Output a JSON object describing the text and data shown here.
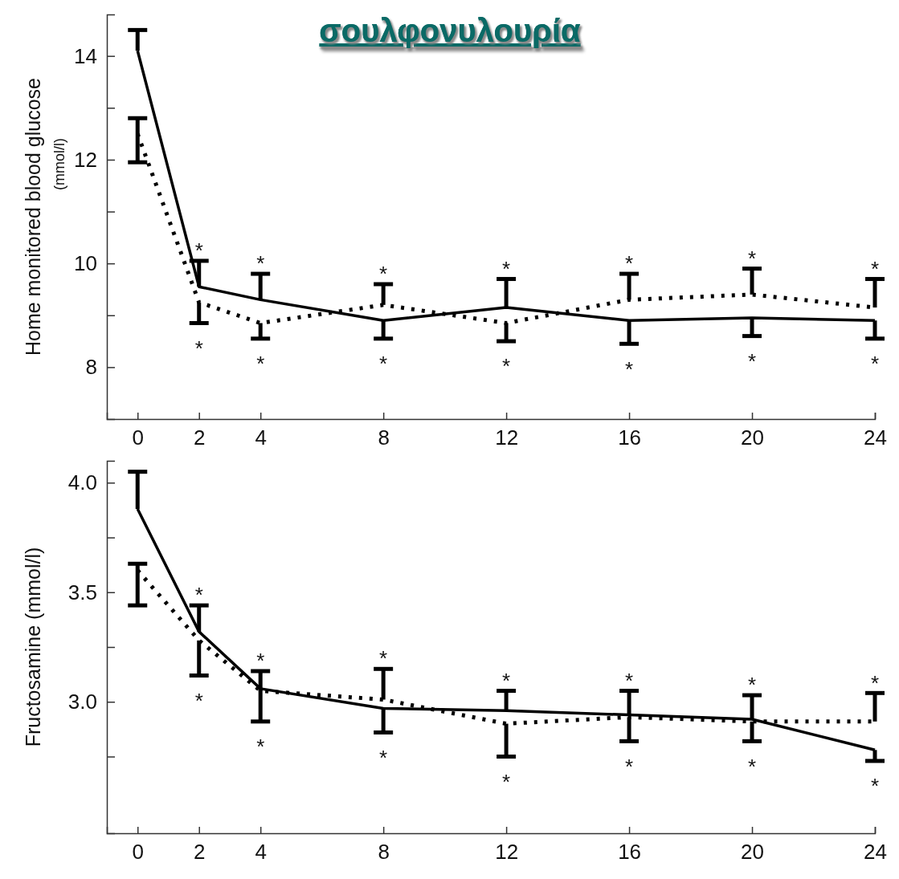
{
  "chart_data": [
    {
      "type": "line",
      "title": "σουλφονυλουρία",
      "ylabel": "Home monitored blood glucose $_{(mmol/l)}$",
      "x": [
        0,
        2,
        4,
        8,
        12,
        16,
        20,
        24
      ],
      "xlim": [
        -1,
        24
      ],
      "xticks": [
        0,
        2,
        4,
        8,
        12,
        16,
        20,
        24
      ],
      "ylim": [
        7,
        14.8
      ],
      "yticks": [
        8,
        {
          "value": 9,
          "label": null
        },
        10,
        {
          "value": 11,
          "label": null
        },
        12,
        {
          "value": 13,
          "label": null
        },
        14
      ],
      "marker": "none",
      "series": [
        {
          "color": "#000000",
          "line_style": "solid",
          "values": [
            14.1,
            9.55,
            9.3,
            8.9,
            9.15,
            8.9,
            8.95,
            8.9
          ],
          "errors": [
            [
              14.1,
              14.5
            ],
            [
              9.55,
              10.05
            ],
            [
              9.3,
              9.8
            ],
            [
              8.55,
              8.9
            ],
            [
              9.15,
              9.7
            ],
            [
              8.45,
              8.9
            ],
            [
              8.6,
              8.95
            ],
            [
              8.55,
              8.9
            ]
          ],
          "value_labels": [
            null,
            "*",
            "*",
            "*",
            "*",
            "*",
            "*",
            "*"
          ]
        },
        {
          "color": "#000000",
          "line_style": "dotted",
          "values": [
            12.5,
            9.25,
            8.85,
            9.2,
            8.85,
            9.3,
            9.4,
            9.15
          ],
          "errors": [
            [
              11.95,
              12.8
            ],
            [
              8.85,
              9.25
            ],
            [
              8.55,
              8.85
            ],
            [
              9.2,
              9.6
            ],
            [
              8.5,
              8.85
            ],
            [
              9.3,
              9.8
            ],
            [
              9.4,
              9.9
            ],
            [
              9.15,
              9.7
            ]
          ],
          "value_labels": [
            null,
            "*",
            "*",
            "*",
            "*",
            "*",
            "*",
            "*"
          ]
        }
      ]
    },
    {
      "type": "line",
      "ylabel": "Fructosamine    (mmol/l)",
      "x": [
        0,
        2,
        4,
        8,
        12,
        16,
        20,
        24
      ],
      "xlim": [
        -1,
        24
      ],
      "xticks": [
        0,
        2,
        4,
        8,
        12,
        16,
        20,
        24
      ],
      "ylim": [
        2.4,
        4.1
      ],
      "yticks": [
        {
          "value": 2.75,
          "label": null
        },
        {
          "value": 3.0,
          "label": "3.0"
        },
        {
          "value": 3.25,
          "label": null
        },
        3.5,
        {
          "value": 3.75,
          "label": null
        },
        {
          "value": 4.0,
          "label": "4.0"
        }
      ],
      "marker": "none",
      "series": [
        {
          "color": "#000000",
          "line_style": "solid",
          "values": [
            3.88,
            3.32,
            3.06,
            2.97,
            2.96,
            2.94,
            2.92,
            2.78
          ],
          "errors": [
            [
              3.88,
              4.05
            ],
            [
              3.32,
              3.44
            ],
            [
              2.91,
              3.06
            ],
            [
              2.86,
              2.97
            ],
            [
              2.96,
              3.05
            ],
            [
              2.94,
              3.05
            ],
            [
              2.92,
              3.03
            ],
            [
              2.73,
              2.78
            ]
          ],
          "value_labels": [
            null,
            "*",
            "*",
            "*",
            "*",
            "*",
            "*",
            "*"
          ]
        },
        {
          "color": "#000000",
          "line_style": "dotted",
          "values": [
            3.6,
            3.28,
            3.05,
            3.01,
            2.9,
            2.93,
            2.91,
            2.91
          ],
          "errors": [
            [
              3.44,
              3.63
            ],
            [
              3.12,
              3.28
            ],
            [
              3.05,
              3.14
            ],
            [
              3.01,
              3.15
            ],
            [
              2.75,
              2.9
            ],
            [
              2.82,
              2.93
            ],
            [
              2.82,
              2.91
            ],
            [
              2.91,
              3.04
            ]
          ],
          "value_labels": [
            null,
            "*",
            "*",
            "*",
            "*",
            "*",
            "*",
            "*"
          ]
        }
      ]
    }
  ]
}
